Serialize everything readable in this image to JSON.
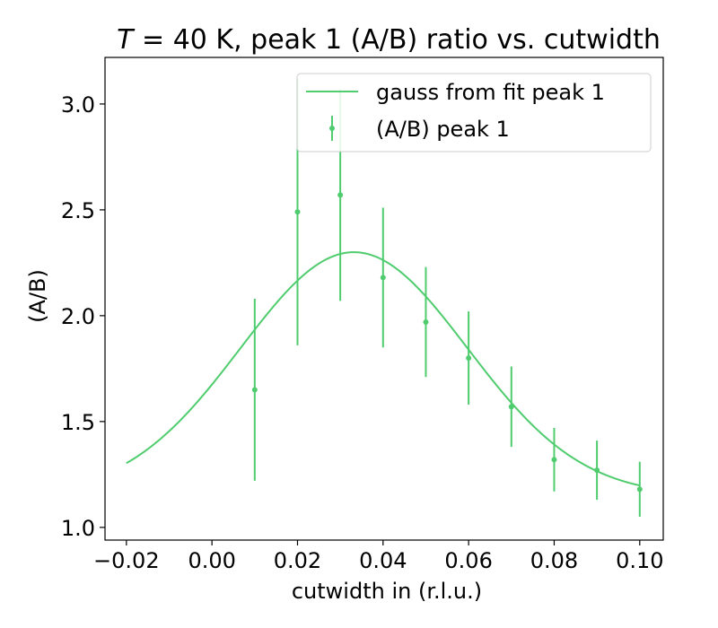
{
  "chart_data": {
    "type": "scatter",
    "title_prefix": "T",
    "title": " = 40 K, peak 1 (A/B) ratio vs. cutwidth",
    "xlabel": "cutwidth in (r.l.u.)",
    "ylabel": "(A/B)",
    "xlim": [
      -0.025,
      0.1055
    ],
    "ylim": [
      0.94,
      3.22
    ],
    "xticks": [
      -0.02,
      0.0,
      0.02,
      0.04,
      0.06,
      0.08,
      0.1
    ],
    "xtick_labels": [
      "−0.02",
      "0.00",
      "0.02",
      "0.04",
      "0.06",
      "0.08",
      "0.10"
    ],
    "yticks": [
      1.0,
      1.5,
      2.0,
      2.5,
      3.0
    ],
    "ytick_labels": [
      "1.0",
      "1.5",
      "2.0",
      "2.5",
      "3.0"
    ],
    "grid": false,
    "legend_position": "top-right",
    "color": "#4fcc6e",
    "series": [
      {
        "name": "gauss from fit peak 1",
        "kind": "line",
        "model": {
          "offset": 1.15,
          "amplitude": 1.15,
          "center": 0.0332,
          "sigma": 0.0265
        },
        "x_range": [
          -0.02,
          0.1
        ]
      },
      {
        "name": "(A/B) peak 1",
        "kind": "errorbar",
        "x": [
          0.01,
          0.02,
          0.03,
          0.04,
          0.05,
          0.06,
          0.07,
          0.08,
          0.09,
          0.1
        ],
        "y": [
          1.65,
          2.49,
          2.57,
          2.18,
          1.97,
          1.8,
          1.57,
          1.32,
          1.27,
          1.18
        ],
        "yerr": [
          0.43,
          0.63,
          0.5,
          0.33,
          0.26,
          0.22,
          0.19,
          0.15,
          0.14,
          0.13
        ]
      }
    ]
  }
}
